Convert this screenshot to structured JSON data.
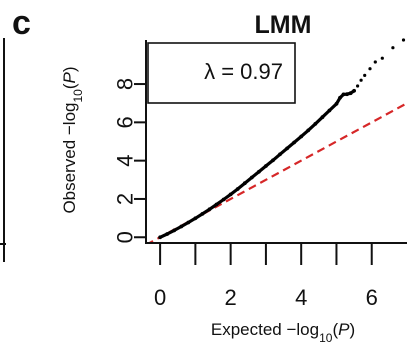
{
  "panel_letter": "c",
  "chart_data": {
    "type": "scatter",
    "title": "LMM",
    "xlabel": "Expected −log10(P)",
    "ylabel": "Observed −log10(P)",
    "xlim": [
      -0.4,
      7
    ],
    "ylim": [
      -0.3,
      10.3
    ],
    "x_ticks": [
      0,
      1,
      2,
      3,
      4,
      5,
      6,
      7
    ],
    "x_tick_labels": [
      {
        "value": 0,
        "label": "0"
      },
      {
        "value": 2,
        "label": "2"
      },
      {
        "value": 4,
        "label": "4"
      },
      {
        "value": 6,
        "label": "6"
      }
    ],
    "y_ticks": [
      {
        "value": 0,
        "label": "0"
      },
      {
        "value": 2,
        "label": "2"
      },
      {
        "value": 4,
        "label": "4"
      },
      {
        "value": 6,
        "label": "6"
      },
      {
        "value": 8,
        "label": "8"
      }
    ],
    "annotation": "λ = 0.97",
    "legend_placement": "top-left",
    "grid": false,
    "series": [
      {
        "marker": "dot",
        "color": "#000000",
        "points": [
          [
            0.0,
            0.0
          ],
          [
            0.2,
            0.17
          ],
          [
            0.4,
            0.36
          ],
          [
            0.6,
            0.56
          ],
          [
            0.8,
            0.77
          ],
          [
            1.0,
            0.99
          ],
          [
            1.2,
            1.22
          ],
          [
            1.4,
            1.46
          ],
          [
            1.6,
            1.71
          ],
          [
            1.8,
            1.97
          ],
          [
            2.0,
            2.24
          ],
          [
            2.2,
            2.52
          ],
          [
            2.4,
            2.82
          ],
          [
            2.6,
            3.12
          ],
          [
            2.8,
            3.42
          ],
          [
            3.0,
            3.72
          ],
          [
            3.2,
            4.02
          ],
          [
            3.4,
            4.33
          ],
          [
            3.6,
            4.64
          ],
          [
            3.8,
            4.95
          ],
          [
            4.0,
            5.26
          ],
          [
            4.2,
            5.58
          ],
          [
            4.4,
            5.92
          ],
          [
            4.6,
            6.27
          ],
          [
            4.8,
            6.62
          ],
          [
            5.0,
            6.97
          ],
          [
            5.1,
            7.28
          ],
          [
            5.2,
            7.46
          ],
          [
            5.3,
            7.47
          ],
          [
            5.4,
            7.52
          ],
          [
            5.5,
            7.65
          ],
          [
            5.6,
            7.9
          ],
          [
            5.7,
            8.2
          ],
          [
            5.8,
            8.45
          ],
          [
            5.95,
            8.8
          ],
          [
            6.1,
            9.15
          ],
          [
            6.3,
            9.35
          ],
          [
            6.6,
            9.9
          ],
          [
            6.9,
            10.3
          ]
        ]
      },
      {
        "name": "",
        "line_style": "dashed",
        "color": "#d62728",
        "points": [
          [
            -0.4,
            -0.4
          ],
          [
            7,
            7
          ]
        ]
      }
    ]
  }
}
